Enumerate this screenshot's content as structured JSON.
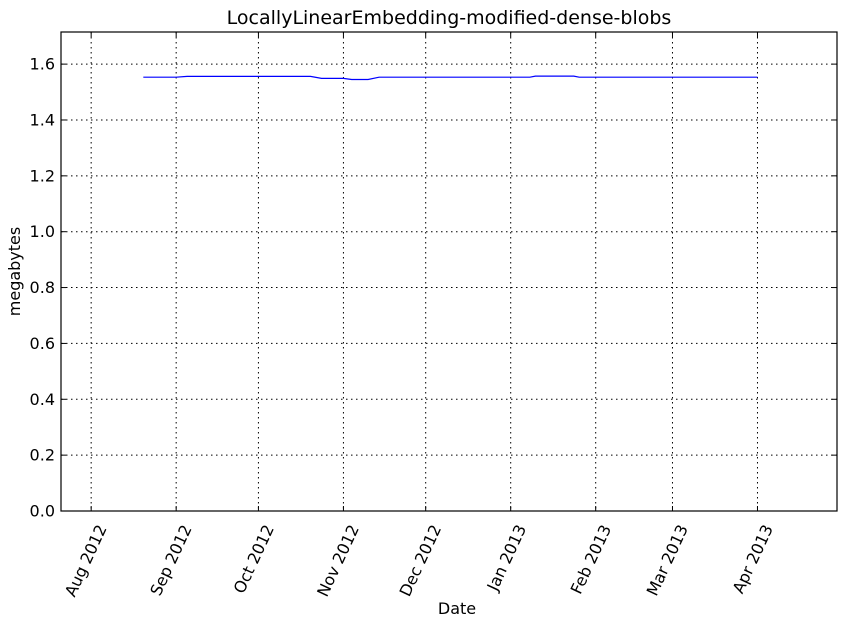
{
  "chart_data": {
    "type": "line",
    "title": "LocallyLinearEmbedding-modified-dense-blobs",
    "xlabel": "Date",
    "ylabel": "megabytes",
    "xlim": [
      "2012-07-21",
      "2013-04-30"
    ],
    "ylim": [
      0,
      1.715
    ],
    "grid": true,
    "x_ticks": [
      {
        "date": "2012-08-01",
        "label": "Aug 2012"
      },
      {
        "date": "2012-09-01",
        "label": "Sep 2012"
      },
      {
        "date": "2012-10-01",
        "label": "Oct 2012"
      },
      {
        "date": "2012-11-01",
        "label": "Nov 2012"
      },
      {
        "date": "2012-12-01",
        "label": "Dec 2012"
      },
      {
        "date": "2013-01-01",
        "label": "Jan 2013"
      },
      {
        "date": "2013-02-01",
        "label": "Feb 2013"
      },
      {
        "date": "2013-03-01",
        "label": "Mar 2013"
      },
      {
        "date": "2013-04-01",
        "label": "Apr 2013"
      }
    ],
    "y_ticks": [
      {
        "value": 0.0,
        "label": "0.0"
      },
      {
        "value": 0.2,
        "label": "0.2"
      },
      {
        "value": 0.4,
        "label": "0.4"
      },
      {
        "value": 0.6,
        "label": "0.6"
      },
      {
        "value": 0.8,
        "label": "0.8"
      },
      {
        "value": 1.0,
        "label": "1.0"
      },
      {
        "value": 1.2,
        "label": "1.2"
      },
      {
        "value": 1.4,
        "label": "1.4"
      },
      {
        "value": 1.6,
        "label": "1.6"
      }
    ],
    "series": [
      {
        "color": "#0000ff",
        "x": [
          "2012-08-20",
          "2012-09-01",
          "2012-09-05",
          "2012-09-20",
          "2012-10-10",
          "2012-10-20",
          "2012-10-24",
          "2012-11-01",
          "2012-11-04",
          "2012-11-10",
          "2012-11-14",
          "2012-12-01",
          "2013-01-01",
          "2013-01-08",
          "2013-01-10",
          "2013-01-24",
          "2013-01-26",
          "2013-02-15",
          "2013-03-10",
          "2013-04-01"
        ],
        "y": [
          1.553,
          1.553,
          1.556,
          1.556,
          1.556,
          1.556,
          1.549,
          1.549,
          1.545,
          1.545,
          1.553,
          1.553,
          1.553,
          1.553,
          1.557,
          1.557,
          1.553,
          1.553,
          1.553,
          1.553
        ]
      }
    ]
  }
}
